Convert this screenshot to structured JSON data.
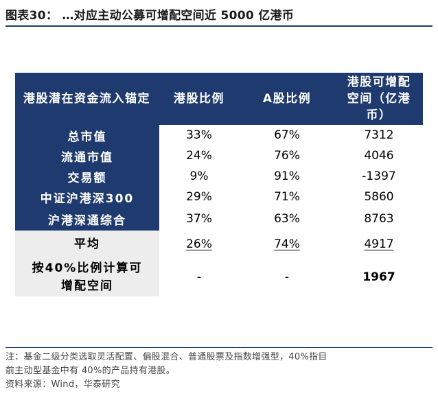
{
  "figure": {
    "title": "图表30：  …对应主动公募可增配空间近 5000 亿港币"
  },
  "table": {
    "headers": [
      "港股潜在资金流入锚定",
      "港股比例",
      "A股比例",
      "港股可增配空间（亿港币）"
    ],
    "rows": [
      {
        "label": "总市值",
        "hk_ratio": "33%",
        "a_ratio": "67%",
        "space": "7312"
      },
      {
        "label": "流通市值",
        "hk_ratio": "24%",
        "a_ratio": "76%",
        "space": "4046"
      },
      {
        "label": "交易额",
        "hk_ratio": "9%",
        "a_ratio": "91%",
        "space": "-1397"
      },
      {
        "label": "中证沪港深300",
        "hk_ratio": "29%",
        "a_ratio": "71%",
        "space": "5860"
      },
      {
        "label": "沪港深通综合",
        "hk_ratio": "37%",
        "a_ratio": "63%",
        "space": "8763"
      }
    ],
    "summary": [
      {
        "label": "平均",
        "hk_ratio": "26%",
        "a_ratio": "74%",
        "space": "4917"
      },
      {
        "label": "按40%比例计算可增配空间",
        "hk_ratio": "-",
        "a_ratio": "-",
        "space": "1967"
      }
    ],
    "highlight_color": "#e00000",
    "header_bg": "#1f3a6e"
  },
  "notes": {
    "line1": "注：基金二级分类选取灵活配置、偏股混合、普通股票及指数增强型，40%指目",
    "line2": "前主动型基金中有 40%的产品持有港股。",
    "source": "资料来源：Wind，华泰研究"
  }
}
